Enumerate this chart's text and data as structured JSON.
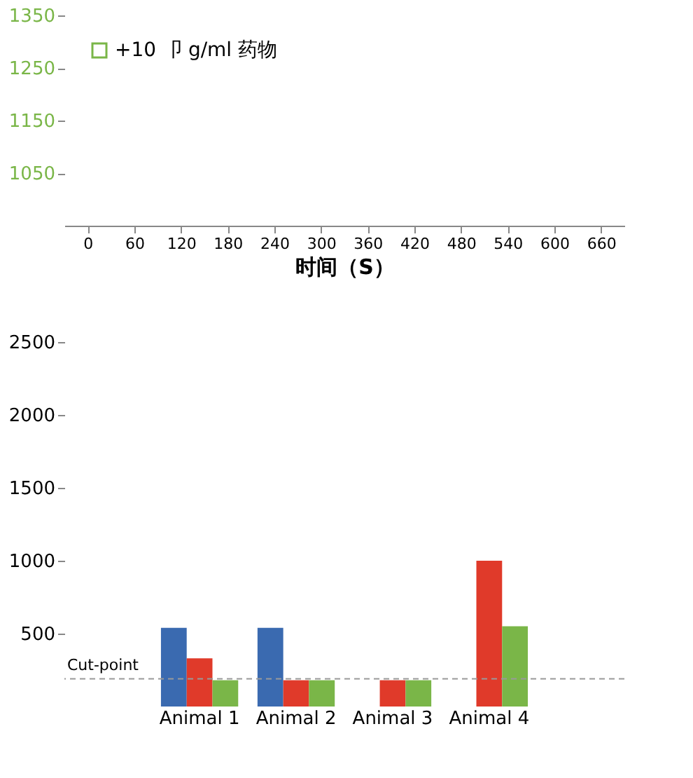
{
  "chart_data": [
    {
      "type": "line",
      "xlabel": "时间（S）",
      "categories": [
        "0",
        "60",
        "120",
        "180",
        "240",
        "300",
        "360",
        "420",
        "480",
        "540",
        "600",
        "660"
      ],
      "ylim": [
        950,
        1350
      ],
      "yticks": [
        1050,
        1150,
        1250,
        1350
      ],
      "legend": "top left",
      "grid": false,
      "series": [
        {
          "name": "+10 卩 g/ml 药物",
          "color": "#7ab648",
          "values": [
            null,
            null,
            null,
            null,
            null,
            null,
            null,
            null,
            null,
            null,
            null,
            null
          ]
        }
      ]
    },
    {
      "type": "bar",
      "categories": [
        "Animal 1",
        "Animal 2",
        "Animal 3",
        "Animal 4"
      ],
      "ylim": [
        0,
        2500
      ],
      "yticks": [
        500,
        1000,
        1500,
        2000,
        2500
      ],
      "grid": false,
      "legend": false,
      "series": [
        {
          "color": "#3a6ab0",
          "values": [
            540,
            540,
            null,
            null
          ]
        },
        {
          "color": "#e03a2a",
          "values": [
            330,
            180,
            180,
            1000
          ]
        },
        {
          "color": "#7ab648",
          "values": [
            180,
            180,
            180,
            550
          ]
        }
      ],
      "ref_lines": [
        {
          "axis": "y",
          "value": 190,
          "label": "Cut-point",
          "line_style": "dashed",
          "color": "#999999"
        }
      ]
    }
  ]
}
